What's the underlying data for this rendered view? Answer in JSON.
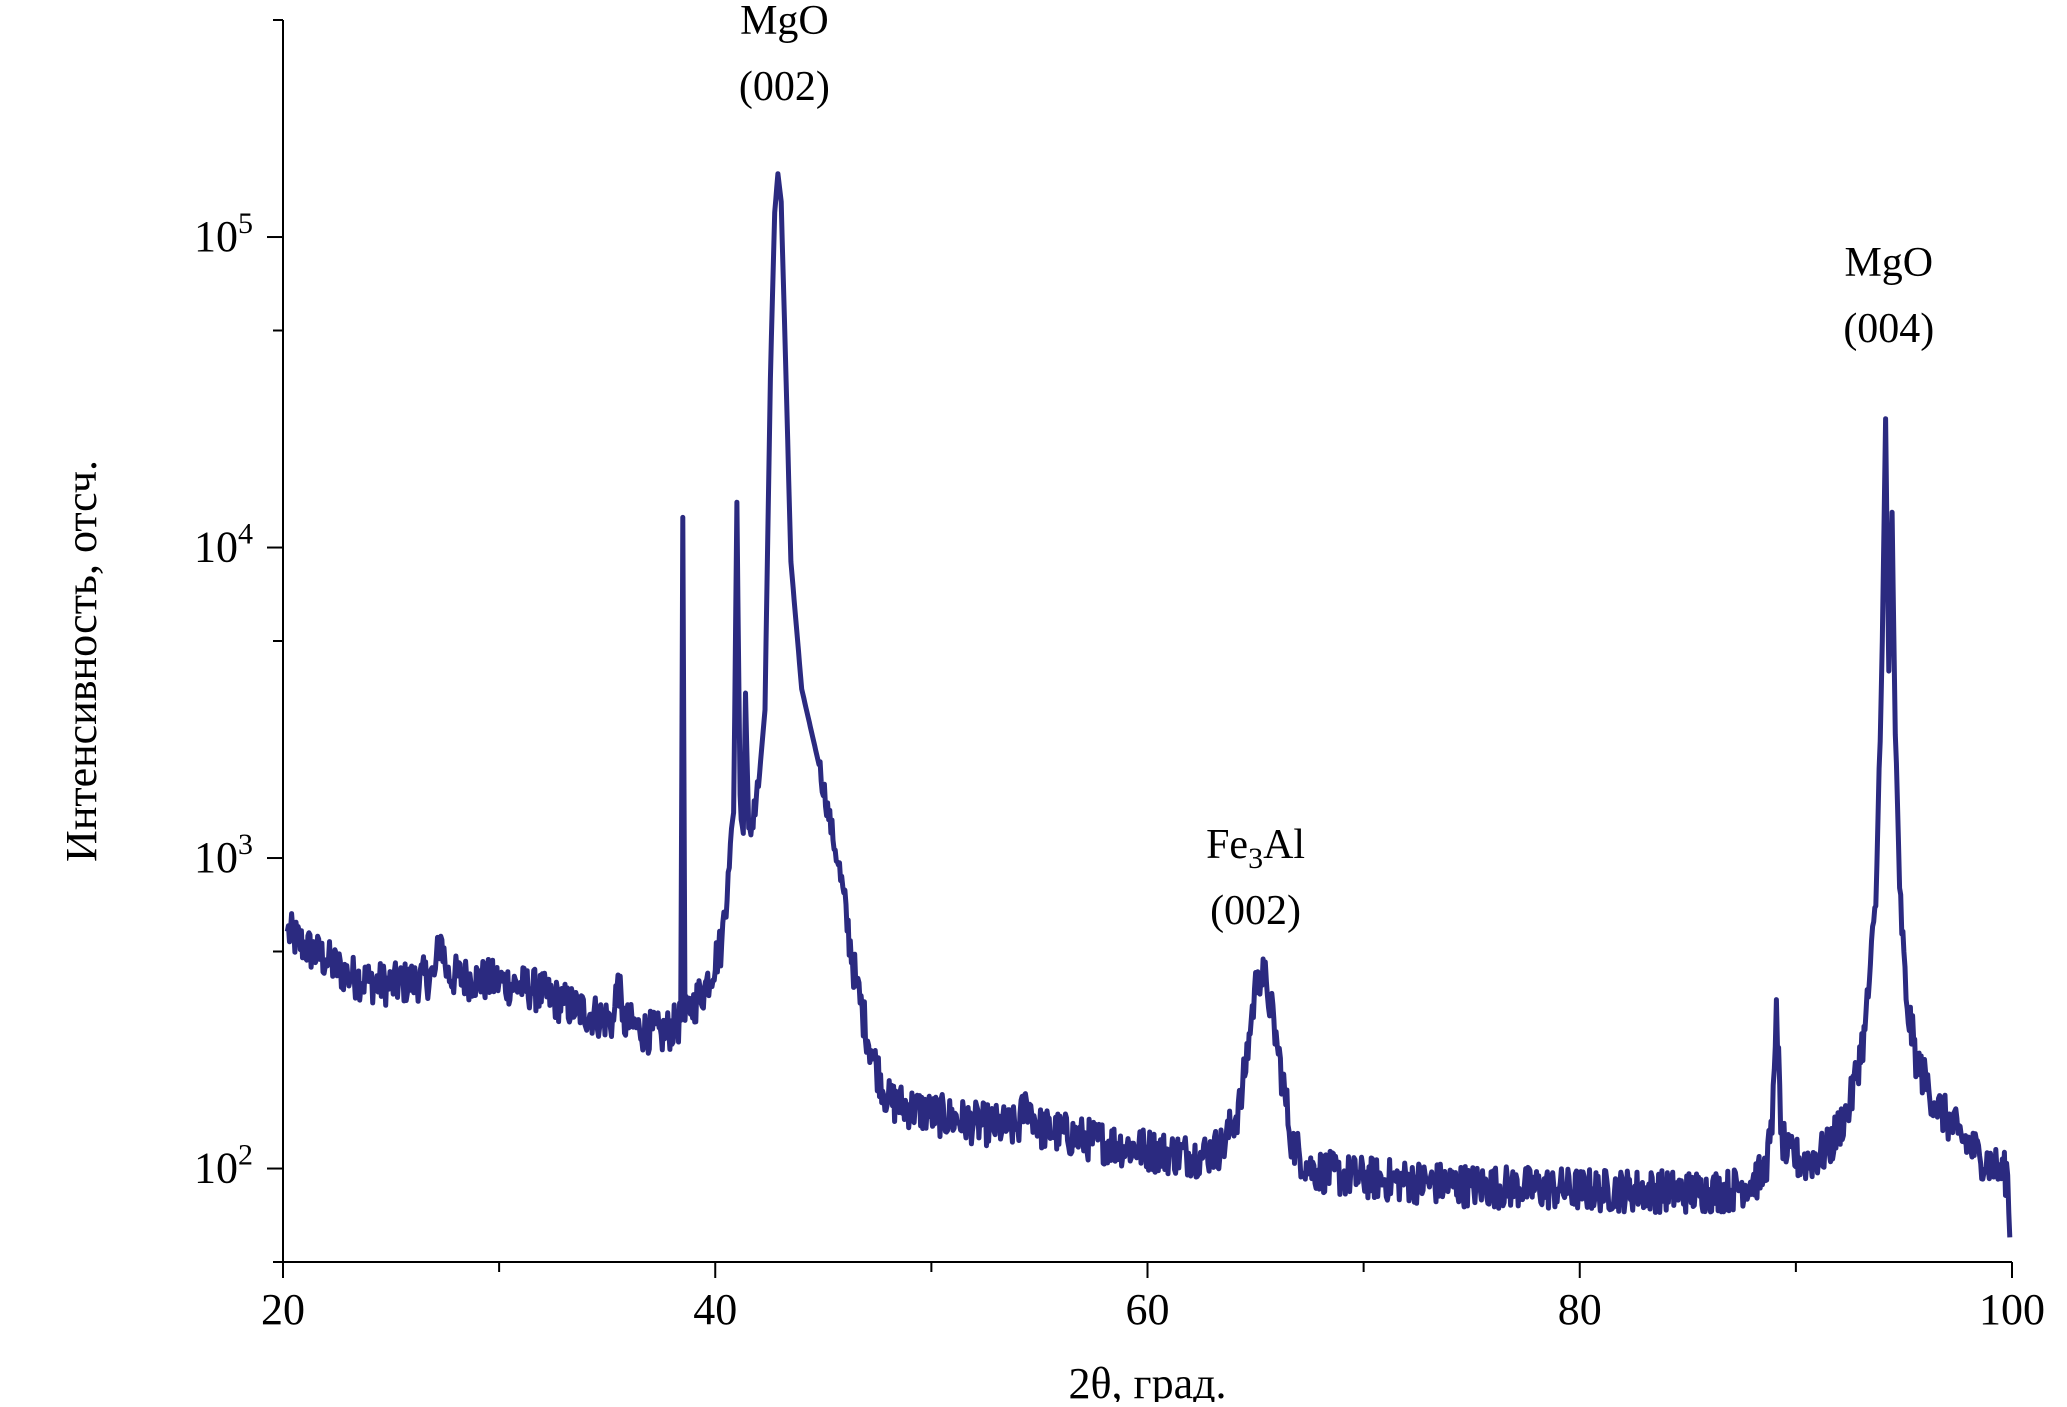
{
  "chart_data": {
    "type": "line",
    "xlabel": "2θ, град.",
    "ylabel": "Интенсивность, отсч.",
    "xlim": [
      20,
      100
    ],
    "ylim": [
      50,
      500000
    ],
    "yscale": "log",
    "x_ticks": [
      20,
      40,
      60,
      80,
      100
    ],
    "x_tick_labels": [
      "20",
      "40",
      "60",
      "80",
      "100"
    ],
    "y_ticks": [
      100,
      1000,
      10000,
      100000
    ],
    "y_tick_labels": [
      {
        "base": "10",
        "exp": "2"
      },
      {
        "base": "10",
        "exp": "3"
      },
      {
        "base": "10",
        "exp": "4"
      },
      {
        "base": "10",
        "exp": "5"
      }
    ],
    "grid": false,
    "series": [
      {
        "color": "#2b2a80",
        "x": [
          20.2,
          21.0,
          22.0,
          23.0,
          24.0,
          25.0,
          26.0,
          27.0,
          27.3,
          27.6,
          28.5,
          30.0,
          31.5,
          33.0,
          34.5,
          35.3,
          35.5,
          35.7,
          36.5,
          37.5,
          38.2,
          38.4,
          38.5,
          38.6,
          38.75,
          38.9,
          39.5,
          40.3,
          40.6,
          40.85,
          41.0,
          41.15,
          41.3,
          41.4,
          41.55,
          41.7,
          42.0,
          42.3,
          42.55,
          42.75,
          42.9,
          43.05,
          43.2,
          43.5,
          44.0,
          44.8,
          45.7,
          46.5,
          47.2,
          48.0,
          50.0,
          52.0,
          54.0,
          54.4,
          55.0,
          57.0,
          59.0,
          61.0,
          62.5,
          63.5,
          64.3,
          64.8,
          65.1,
          65.5,
          66.0,
          66.7,
          67.5,
          69.0,
          71.0,
          73.0,
          75.0,
          77.0,
          79.0,
          81.0,
          83.0,
          85.0,
          87.0,
          88.5,
          88.9,
          89.1,
          89.3,
          89.6,
          90.5,
          91.5,
          92.5,
          93.2,
          93.7,
          94.0,
          94.15,
          94.3,
          94.45,
          94.6,
          94.8,
          95.1,
          95.6,
          96.5,
          97.5,
          98.5,
          99.3,
          99.8,
          99.9
        ],
        "y": [
          580,
          520,
          470,
          420,
          400,
          390,
          400,
          420,
          560,
          420,
          410,
          400,
          380,
          340,
          310,
          300,
          420,
          300,
          280,
          270,
          290,
          300,
          12500,
          300,
          320,
          330,
          380,
          530,
          900,
          1400,
          14000,
          1600,
          1200,
          3400,
          1250,
          1300,
          1700,
          3000,
          35000,
          120000,
          160000,
          130000,
          55000,
          9000,
          3500,
          2000,
          950,
          400,
          240,
          165,
          150,
          140,
          135,
          165,
          135,
          125,
          118,
          112,
          110,
          118,
          160,
          300,
          430,
          400,
          250,
          120,
          100,
          95,
          92,
          90,
          88,
          87,
          86,
          85,
          85,
          84,
          85,
          95,
          130,
          350,
          130,
          110,
          105,
          115,
          160,
          280,
          700,
          5000,
          26000,
          4000,
          13000,
          2500,
          800,
          350,
          220,
          160,
          130,
          110,
          100,
          95,
          60
        ]
      }
    ],
    "annotations": [
      {
        "x": 43.2,
        "y": 450000,
        "line1": "MgO",
        "line2": "(002)"
      },
      {
        "x": 65.0,
        "y": 1000,
        "line1_base": "Fe",
        "line1_sub": "3",
        "line1_tail": "Al",
        "line2": "(002)"
      },
      {
        "x": 94.3,
        "y": 75000,
        "line1": "MgO",
        "line2": "(004)"
      }
    ]
  }
}
